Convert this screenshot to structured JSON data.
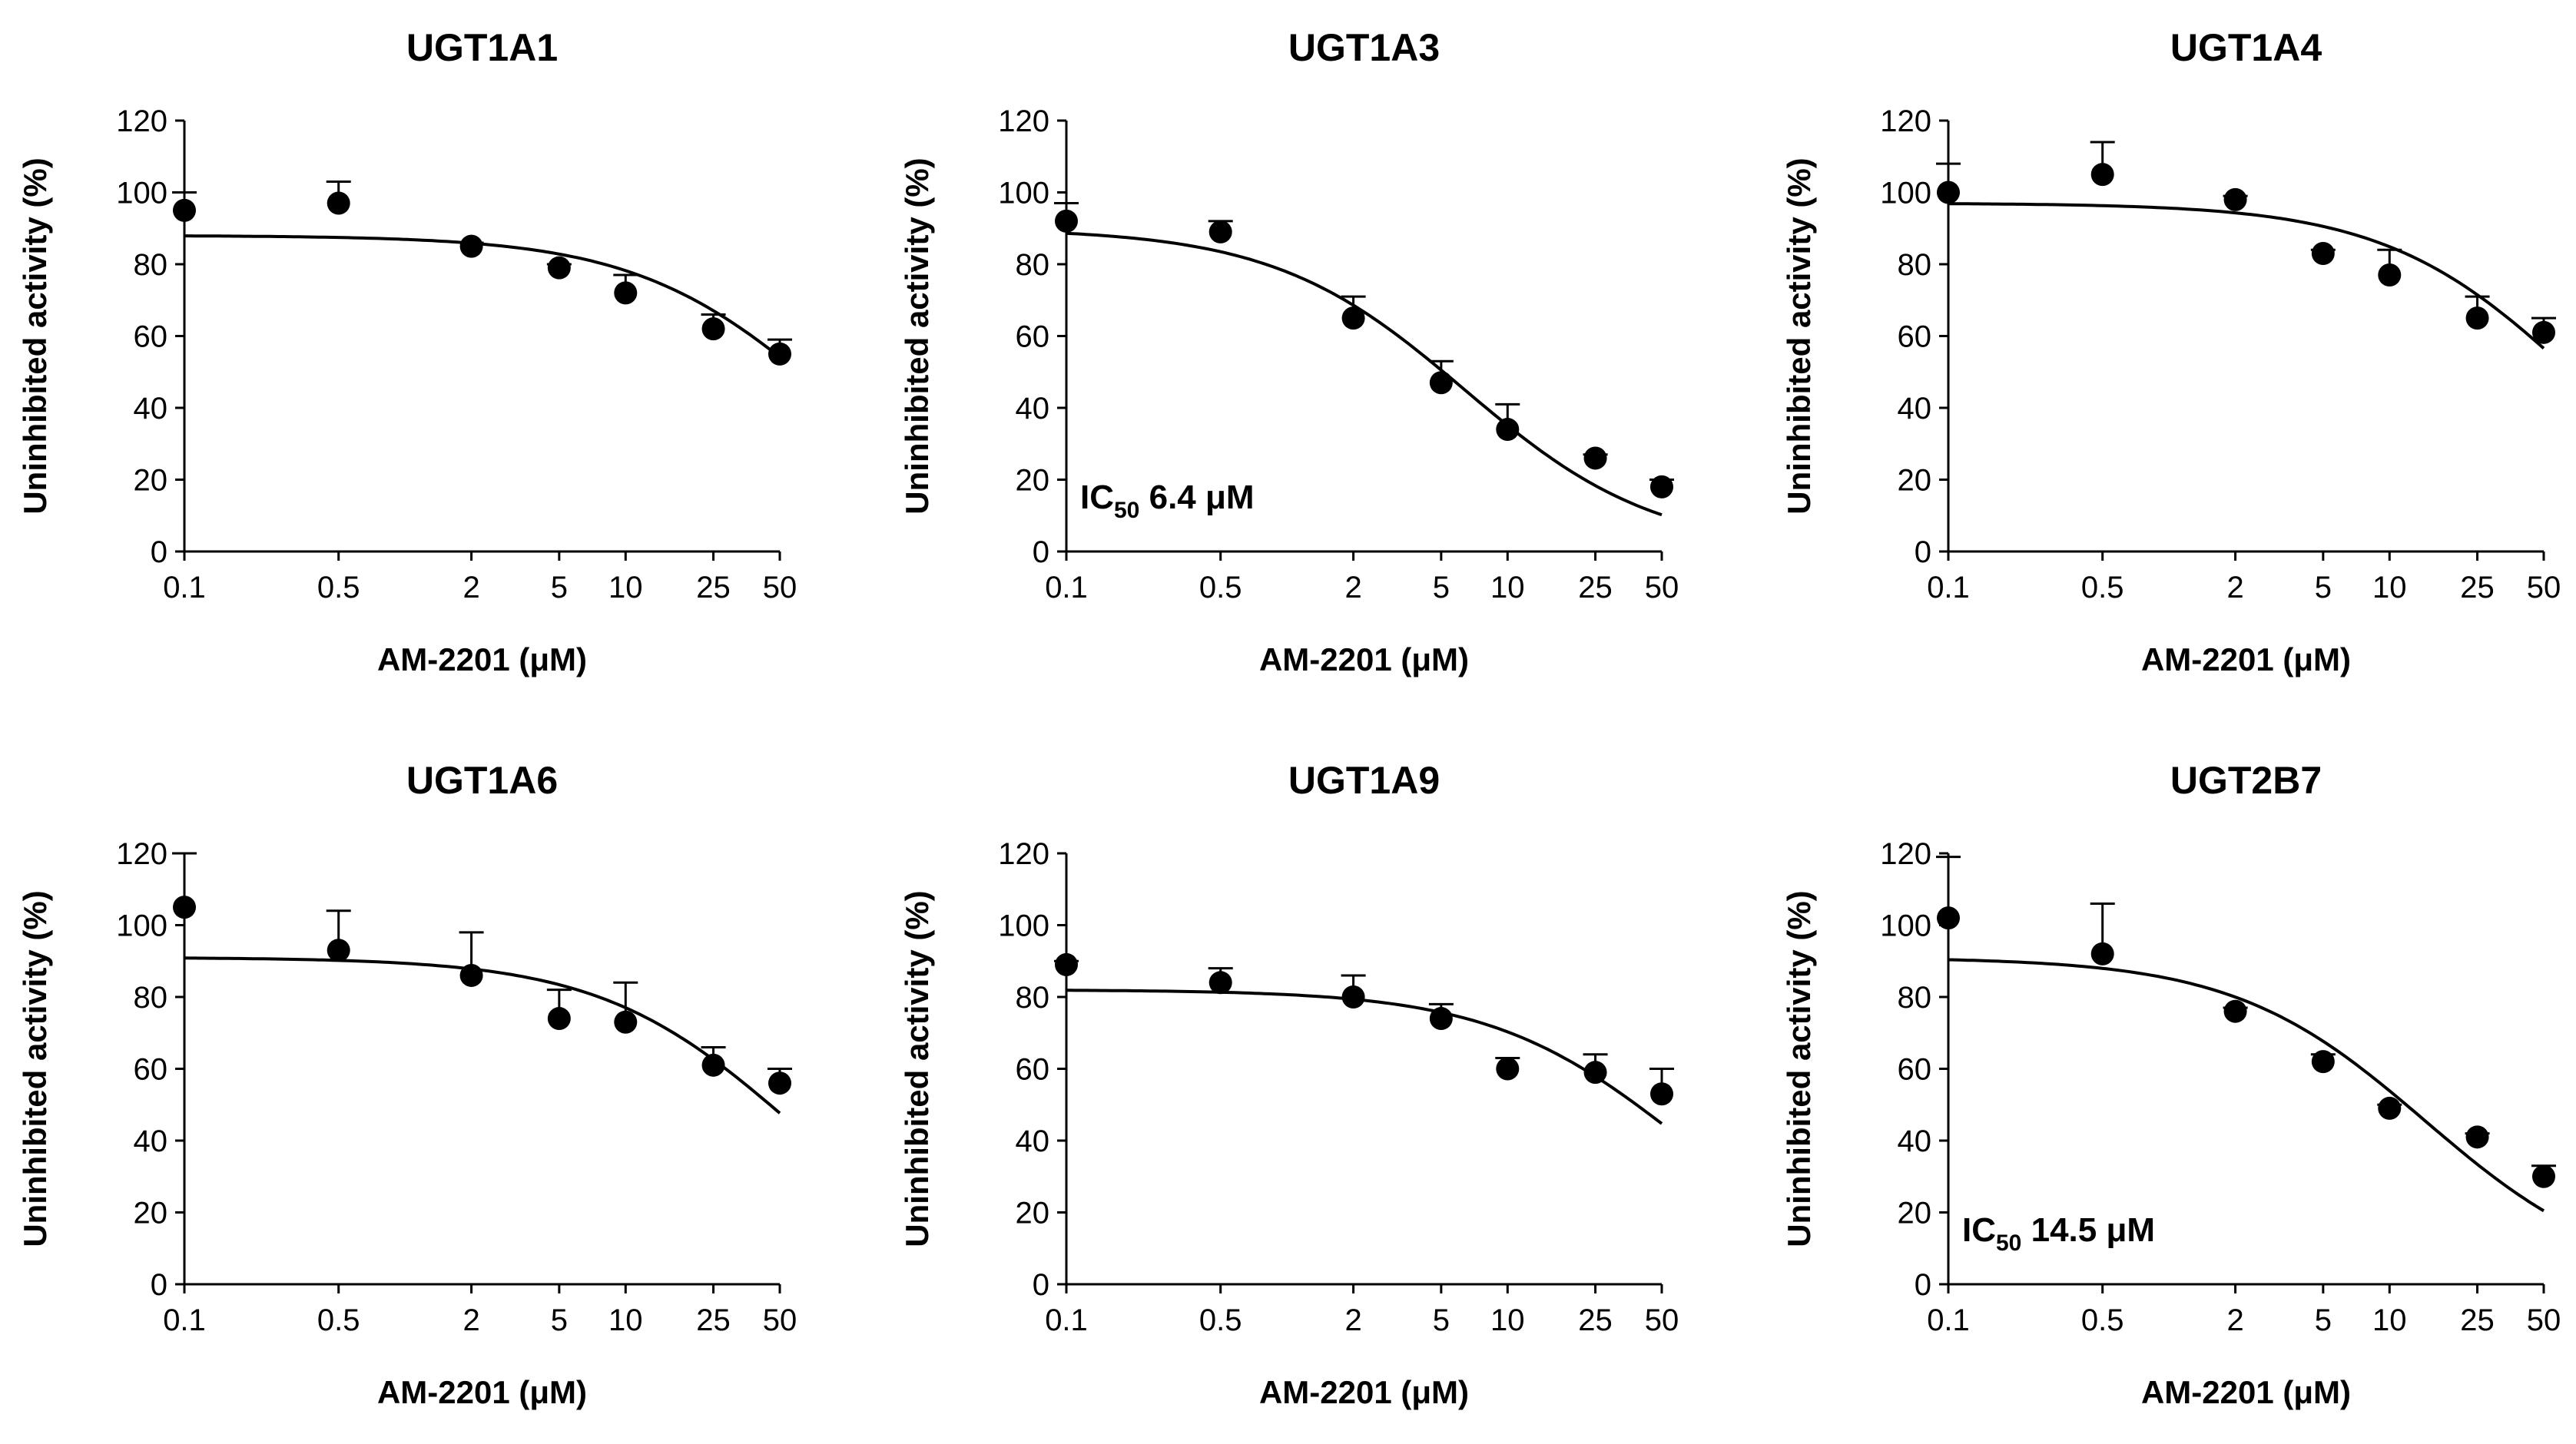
{
  "chart_data": [
    {
      "type": "scatter",
      "title": "UGT1A1",
      "xlabel": "AM-2201 (μM)",
      "ylabel": "Uninhibited activity (%)",
      "x_scale": "log",
      "x_ticks": [
        "0.1",
        "0.5",
        "2",
        "5",
        "10",
        "25",
        "50"
      ],
      "y_ticks": [
        "0",
        "20",
        "40",
        "60",
        "80",
        "100",
        "120"
      ],
      "ylim": [
        0,
        120
      ],
      "x": [
        0.1,
        0.5,
        2,
        5,
        10,
        25,
        50
      ],
      "y": [
        95,
        97,
        85,
        79,
        72,
        62,
        55
      ],
      "error": [
        5,
        6,
        1,
        1,
        5,
        4,
        4
      ],
      "fit": {
        "top": 88,
        "bottom": 0,
        "ic50": 80
      },
      "annotation": {
        "prefix": "",
        "subscript": "",
        "suffix": ""
      }
    },
    {
      "type": "scatter",
      "title": "UGT1A3",
      "xlabel": "AM-2201 (μM)",
      "ylabel": "Uninhibited activity (%)",
      "x_scale": "log",
      "x_ticks": [
        "0.1",
        "0.5",
        "2",
        "5",
        "10",
        "25",
        "50"
      ],
      "y_ticks": [
        "0",
        "20",
        "40",
        "60",
        "80",
        "100",
        "120"
      ],
      "ylim": [
        0,
        120
      ],
      "x": [
        0.1,
        0.5,
        2,
        5,
        10,
        25,
        50
      ],
      "y": [
        92,
        89,
        65,
        47,
        34,
        26,
        18
      ],
      "error": [
        5,
        3,
        6,
        6,
        7,
        1,
        2
      ],
      "fit": {
        "top": 90,
        "bottom": 0,
        "ic50": 6.4
      },
      "annotation": {
        "prefix": "IC",
        "subscript": "50",
        "suffix": " 6.4 μM"
      }
    },
    {
      "type": "scatter",
      "title": "UGT1A4",
      "xlabel": "AM-2201 (μM)",
      "ylabel": "Uninhibited activity (%)",
      "x_scale": "log",
      "x_ticks": [
        "0.1",
        "0.5",
        "2",
        "5",
        "10",
        "25",
        "50"
      ],
      "y_ticks": [
        "0",
        "20",
        "40",
        "60",
        "80",
        "100",
        "120"
      ],
      "ylim": [
        0,
        120
      ],
      "x": [
        0.1,
        0.5,
        2,
        5,
        10,
        25,
        50
      ],
      "y": [
        100,
        105,
        98,
        83,
        77,
        65,
        61
      ],
      "error": [
        8,
        9,
        1,
        1,
        7,
        6,
        4
      ],
      "fit": {
        "top": 97,
        "bottom": 0,
        "ic50": 70
      },
      "annotation": {
        "prefix": "",
        "subscript": "",
        "suffix": ""
      }
    },
    {
      "type": "scatter",
      "title": "UGT1A6",
      "xlabel": "AM-2201 (μM)",
      "ylabel": "Uninhibited activity (%)",
      "x_scale": "log",
      "x_ticks": [
        "0.1",
        "0.5",
        "2",
        "5",
        "10",
        "25",
        "50"
      ],
      "y_ticks": [
        "0",
        "20",
        "40",
        "60",
        "80",
        "100",
        "120"
      ],
      "ylim": [
        0,
        120
      ],
      "x": [
        0.1,
        0.5,
        2,
        5,
        10,
        25,
        50
      ],
      "y": [
        105,
        93,
        86,
        74,
        73,
        61,
        56
      ],
      "error": [
        15,
        11,
        12,
        8,
        11,
        5,
        4
      ],
      "fit": {
        "top": 91,
        "bottom": 0,
        "ic50": 55
      },
      "annotation": {
        "prefix": "",
        "subscript": "",
        "suffix": ""
      }
    },
    {
      "type": "scatter",
      "title": "UGT1A9",
      "xlabel": "AM-2201 (μM)",
      "ylabel": "Uninhibited activity (%)",
      "x_scale": "log",
      "x_ticks": [
        "0.1",
        "0.5",
        "2",
        "5",
        "10",
        "25",
        "50"
      ],
      "y_ticks": [
        "0",
        "20",
        "40",
        "60",
        "80",
        "100",
        "120"
      ],
      "ylim": [
        0,
        120
      ],
      "x": [
        0.1,
        0.5,
        2,
        5,
        10,
        25,
        50
      ],
      "y": [
        89,
        84,
        80,
        74,
        60,
        59,
        53
      ],
      "error": [
        1,
        4,
        6,
        4,
        3,
        5,
        7
      ],
      "fit": {
        "top": 82,
        "bottom": 0,
        "ic50": 60
      },
      "annotation": {
        "prefix": "",
        "subscript": "",
        "suffix": ""
      }
    },
    {
      "type": "scatter",
      "title": "UGT2B7",
      "xlabel": "AM-2201 (μM)",
      "ylabel": "Uninhibited activity (%)",
      "x_scale": "log",
      "x_ticks": [
        "0.1",
        "0.5",
        "2",
        "5",
        "10",
        "25",
        "50"
      ],
      "y_ticks": [
        "0",
        "20",
        "40",
        "60",
        "80",
        "100",
        "120"
      ],
      "ylim": [
        0,
        120
      ],
      "x": [
        0.1,
        0.5,
        2,
        5,
        10,
        25,
        50
      ],
      "y": [
        102,
        92,
        76,
        62,
        49,
        41,
        30
      ],
      "error": [
        17,
        14,
        1,
        2,
        1,
        1,
        3
      ],
      "fit": {
        "top": 91,
        "bottom": 0,
        "ic50": 14.5
      },
      "annotation": {
        "prefix": "IC",
        "subscript": "50",
        "suffix": " 14.5 μM"
      }
    }
  ]
}
